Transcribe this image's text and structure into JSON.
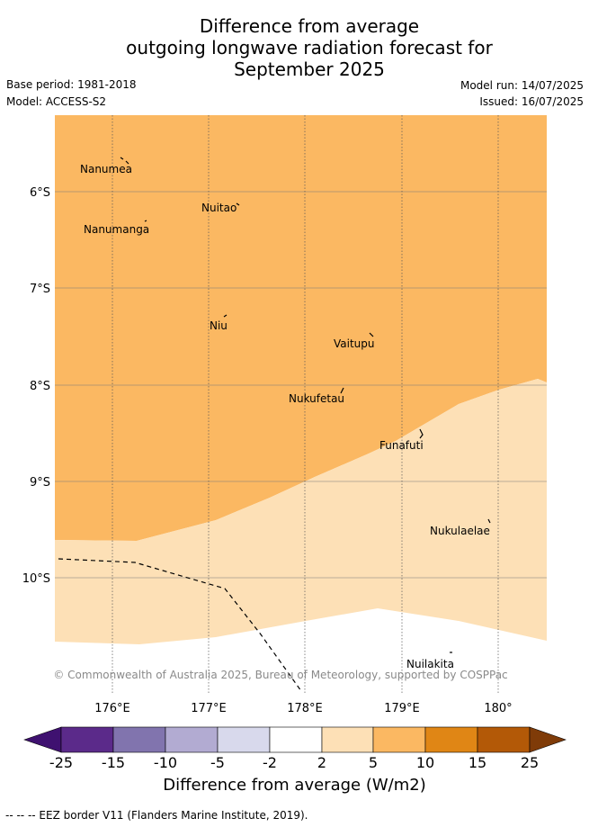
{
  "title": {
    "line1": "Difference from average",
    "line2": "outgoing longwave radiation forecast for",
    "line3": "September 2025"
  },
  "meta": {
    "base_period": "Base period: 1981-2018",
    "model": "Model: ACCESS-S2",
    "model_run": "Model run: 14/07/2025",
    "issued": "Issued: 16/07/2025"
  },
  "map": {
    "lon_labels": [
      "176°E",
      "177°E",
      "178°E",
      "179°E",
      "180°"
    ],
    "lat_labels": [
      "6°S",
      "7°S",
      "8°S",
      "9°S",
      "10°S"
    ],
    "places": [
      "Nanumea",
      "Nuitao",
      "Nanumanga",
      "Niu",
      "Vaitupu",
      "Nukufetau",
      "Funafuti",
      "Nukulaelae",
      "Nuilakita"
    ],
    "copyright": "© Commonwealth of Australia 2025, Bureau of Meteorology, supported by COSPPac",
    "colors": {
      "band_5_10": "#fbb862",
      "band_2_5": "#fde0b6",
      "below_2": "#ffffff"
    }
  },
  "colorbar": {
    "ticks": [
      "-25",
      "-15",
      "-10",
      "-5",
      "-2",
      "2",
      "5",
      "10",
      "15",
      "25"
    ],
    "colors": [
      "#3f1170",
      "#5b2a8a",
      "#8174ae",
      "#b2abd2",
      "#d8d9ec",
      "#ffffff",
      "#fde0b6",
      "#fbb862",
      "#e08615",
      "#b35907",
      "#7f3b08"
    ],
    "label": "Difference from average (W/m2)"
  },
  "footer": "-- -- -- EEZ border V11 (Flanders Marine Institute, 2019)."
}
